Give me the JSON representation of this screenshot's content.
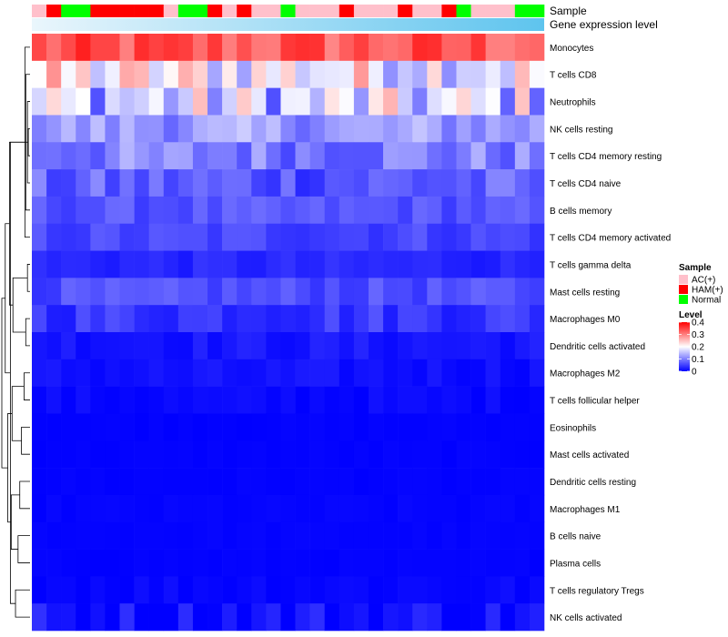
{
  "chart_data": {
    "type": "heatmap",
    "annotation_labels": [
      "Sample",
      "Gene expression level"
    ],
    "sample_groups": [
      "AC(+)",
      "HAM(+)",
      "Normal",
      "Normal",
      "HAM(+)",
      "HAM(+)",
      "HAM(+)",
      "HAM(+)",
      "HAM(+)",
      "AC(+)",
      "Normal",
      "Normal",
      "HAM(+)",
      "AC(+)",
      "HAM(+)",
      "AC(+)",
      "AC(+)",
      "Normal",
      "AC(+)",
      "AC(+)",
      "AC(+)",
      "HAM(+)",
      "AC(+)",
      "AC(+)",
      "AC(+)",
      "HAM(+)",
      "AC(+)",
      "AC(+)",
      "HAM(+)",
      "Normal",
      "AC(+)",
      "AC(+)",
      "AC(+)",
      "Normal",
      "Normal"
    ],
    "sample_colors": {
      "AC(+)": "#FFC0CB",
      "HAM(+)": "#FF0000",
      "Normal": "#00FF00"
    },
    "expression_gradient": [
      "#EAF6FC",
      "#5EC4EE"
    ],
    "rows": [
      "Monocytes",
      "T cells CD8",
      "Neutrophils",
      "NK cells resting",
      "T cells CD4 memory resting",
      "T cells CD4 naive",
      "B cells memory",
      "T cells CD4 memory activated",
      "T cells gamma delta",
      "Mast cells resting",
      "Macrophages M0",
      "Dendritic cells activated",
      "Macrophages M2",
      "T cells follicular helper",
      "Eosinophils",
      "Mast cells activated",
      "Dendritic cells resting",
      "Macrophages M1",
      "B cells naive",
      "Plasma cells",
      "T cells regulatory  Tregs",
      "NK cells activated"
    ],
    "row_means": [
      0.33,
      0.2,
      0.16,
      0.12,
      0.1,
      0.07,
      0.065,
      0.055,
      0.03,
      0.06,
      0.045,
      0.018,
      0.012,
      0.006,
      0.002,
      0.002,
      0.002,
      0.003,
      0.003,
      0.002,
      0.006,
      0.012
    ],
    "row_spread": [
      0.045,
      0.09,
      0.1,
      0.04,
      0.045,
      0.04,
      0.02,
      0.02,
      0.012,
      0.02,
      0.025,
      0.012,
      0.01,
      0.008,
      0.002,
      0.002,
      0.002,
      0.003,
      0.002,
      0.002,
      0.008,
      0.03
    ],
    "n_columns": 35,
    "legend": {
      "sample_title": "Sample",
      "sample_entries": [
        "AC(+)",
        "HAM(+)",
        "Normal"
      ],
      "level_title": "Level",
      "level_ticks": [
        "0.4",
        "0.3",
        "0.2",
        "0.1",
        "0"
      ],
      "level_range": [
        0,
        0.4
      ],
      "level_colors": [
        "#0000FF",
        "#FFFFFF",
        "#FF0000"
      ]
    },
    "dendrogram": {
      "merges": [
        [
          3,
          4
        ],
        [
          2,
          5
        ],
        [
          1,
          6
        ],
        [
          0,
          7
        ],
        [
          8,
          9
        ],
        [
          10,
          11
        ],
        [
          12,
          13
        ],
        [
          14,
          15
        ],
        [
          16,
          17
        ],
        [
          18,
          19
        ],
        [
          20,
          21
        ],
        [
          22,
          23
        ],
        [
          24,
          25
        ],
        [
          26,
          27
        ],
        [
          28,
          29
        ],
        [
          30,
          31
        ],
        [
          32,
          33
        ],
        [
          34,
          35
        ],
        [
          36,
          37
        ],
        [
          38,
          39
        ],
        [
          40,
          41
        ]
      ],
      "heights": [
        0.02,
        0.03,
        0.05,
        0.06,
        0.03,
        0.05,
        0.07,
        0.1,
        0.12,
        0.14,
        0.17,
        0.18,
        0.19,
        0.2,
        0.21,
        0.22,
        0.23,
        0.24,
        0.26,
        0.29,
        0.33
      ]
    }
  }
}
